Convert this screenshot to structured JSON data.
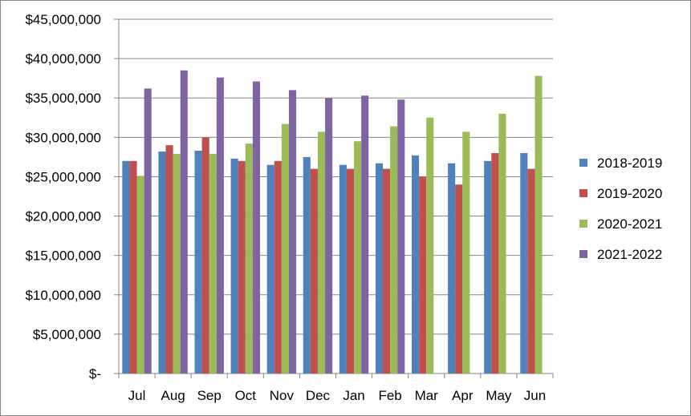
{
  "chart_data": {
    "type": "bar",
    "categories": [
      "Jul",
      "Aug",
      "Sep",
      "Oct",
      "Nov",
      "Dec",
      "Jan",
      "Feb",
      "Mar",
      "Apr",
      "May",
      "Jun"
    ],
    "series": [
      {
        "name": "2018-2019",
        "color": "#4F81BD",
        "values": [
          27000000,
          28200000,
          28300000,
          27300000,
          26500000,
          27500000,
          26500000,
          26700000,
          27700000,
          26700000,
          27000000,
          28000000
        ]
      },
      {
        "name": "2019-2020",
        "color": "#C0504D",
        "values": [
          27000000,
          29000000,
          30000000,
          27000000,
          27000000,
          26000000,
          26000000,
          26000000,
          25000000,
          24000000,
          28000000,
          26000000
        ]
      },
      {
        "name": "2020-2021",
        "color": "#9BBB59",
        "values": [
          25100000,
          27900000,
          27900000,
          29200000,
          31700000,
          30700000,
          29500000,
          31400000,
          32500000,
          30700000,
          33000000,
          37800000
        ]
      },
      {
        "name": "2021-2022",
        "color": "#8064A2",
        "values": [
          36200000,
          38500000,
          37600000,
          37100000,
          36000000,
          35000000,
          35300000,
          34800000,
          null,
          null,
          null,
          null
        ]
      }
    ],
    "ylim": [
      0,
      45000000
    ],
    "yticks": [
      0,
      5000000,
      10000000,
      15000000,
      20000000,
      25000000,
      30000000,
      35000000,
      40000000,
      45000000
    ],
    "ytick_labels": [
      "$-",
      "$5,000,000",
      "$10,000,000",
      "$15,000,000",
      "$20,000,000",
      "$25,000,000",
      "$30,000,000",
      "$35,000,000",
      "$40,000,000",
      "$45,000,000"
    ],
    "title": "",
    "xlabel": "",
    "ylabel": "",
    "grid": "horizontal",
    "legend": "right"
  }
}
